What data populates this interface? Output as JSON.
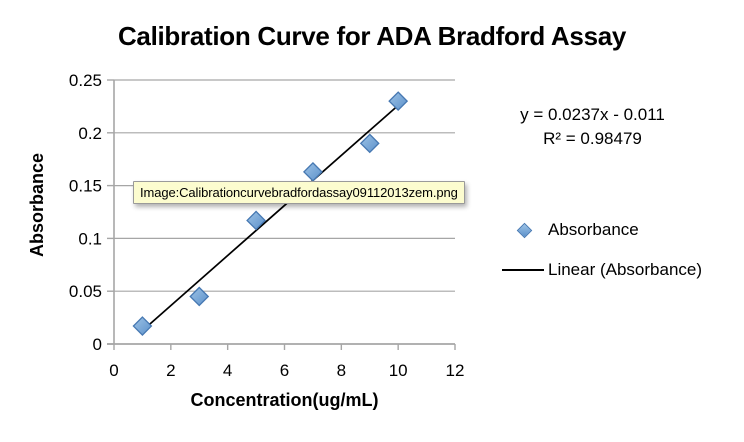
{
  "tooltip": {
    "text": "Image:Calibrationcurvebradfordassay09112013zem.png"
  },
  "chart_data": {
    "type": "scatter",
    "title": "Calibration Curve for ADA Bradford Assay",
    "xlabel": "Concentration(ug/mL)",
    "ylabel": "Absorbance",
    "xlim": [
      0,
      12
    ],
    "ylim": [
      0,
      0.25
    ],
    "x_ticks": [
      0,
      2,
      4,
      6,
      8,
      10,
      12
    ],
    "y_ticks": [
      0,
      0.05,
      0.1,
      0.15,
      0.2,
      0.25
    ],
    "y_tick_labels": [
      "0",
      "0.05",
      "0.1",
      "0.15",
      "0.2",
      "0.25"
    ],
    "grid": true,
    "legend_position": "right",
    "series": [
      {
        "name": "Absorbance",
        "type": "scatter",
        "marker": "diamond",
        "x": [
          1,
          3,
          5,
          7,
          9,
          10
        ],
        "y": [
          0.017,
          0.045,
          0.117,
          0.163,
          0.19,
          0.23
        ]
      },
      {
        "name": "Linear (Absorbance)",
        "type": "line",
        "slope": 0.0237,
        "intercept": -0.011,
        "x_range": [
          1,
          10.15
        ],
        "equation": "y = 0.0237x - 0.011",
        "r_squared": "R² = 0.98479"
      }
    ],
    "annotations": [
      "y = 0.0237x - 0.011",
      "R² = 0.98479"
    ],
    "colors": {
      "marker_fill_light": "#9EC3E6",
      "marker_fill_dark": "#5B90CA",
      "marker_stroke": "#4678B2",
      "trendline": "#000000",
      "gridline": "#A6A6A6",
      "axis": "#A6A6A6",
      "tooltip_bg": "#FCFCCF",
      "tooltip_border": "#9A9A9A"
    }
  }
}
